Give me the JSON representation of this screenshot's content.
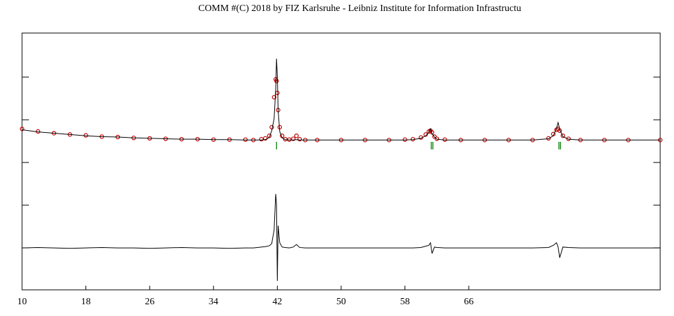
{
  "chart_data": {
    "type": "line",
    "title": "COMM #(C) 2018 by FIZ Karlsruhe - Leibniz Institute for Information Infrastructu",
    "x": [
      10,
      12,
      14,
      16,
      18,
      20,
      22,
      24,
      26,
      28,
      30,
      32,
      34,
      36,
      38,
      39,
      40,
      40.5,
      41,
      41.3,
      41.6,
      41.8,
      41.9,
      42,
      42.1,
      42.3,
      42.6,
      43,
      43.5,
      44,
      44.4,
      44.8,
      45.5,
      47,
      50,
      53,
      56,
      58,
      59,
      60,
      60.6,
      61,
      61.2,
      61.4,
      61.7,
      62,
      63,
      65,
      68,
      71,
      74,
      76,
      76.6,
      77,
      77.2,
      77.4,
      77.8,
      78.5,
      80,
      83,
      86,
      90
    ],
    "series": [
      {
        "color": "#c00000",
        "marker": "circle",
        "values": [
          376,
          370,
          366,
          363,
          361,
          358,
          357,
          355,
          354,
          353,
          352,
          352,
          351,
          351,
          351,
          350,
          352,
          354,
          360,
          380,
          450,
          492,
          488,
          460,
          420,
          380,
          360,
          352,
          351,
          353,
          360,
          352,
          350,
          350,
          350,
          350,
          350,
          351,
          352,
          356,
          363,
          370,
          372,
          368,
          358,
          353,
          351,
          350,
          350,
          350,
          350,
          354,
          364,
          374,
          376,
          372,
          360,
          353,
          350,
          350,
          350,
          350
        ]
      },
      {
        "color": "#000000",
        "values": [
          374,
          369,
          366,
          363,
          360,
          358,
          357,
          355,
          354,
          353,
          352,
          352,
          351,
          351,
          350,
          350,
          350,
          351,
          356,
          372,
          400,
          470,
          540,
          500,
          420,
          370,
          355,
          351,
          350,
          350,
          351,
          350,
          350,
          350,
          350,
          350,
          350,
          350,
          351,
          354,
          360,
          368,
          376,
          365,
          357,
          352,
          350,
          350,
          350,
          350,
          350,
          353,
          360,
          378,
          391,
          375,
          358,
          352,
          350,
          350,
          350,
          350
        ]
      },
      {
        "color": "#000000",
        "values": [
          98,
          99,
          98,
          97,
          98,
          99,
          98,
          98,
          97,
          98,
          99,
          98,
          98,
          97,
          98,
          98,
          100,
          101,
          103,
          108,
          140,
          224,
          200,
          21,
          150,
          110,
          100,
          99,
          98,
          100,
          106,
          99,
          98,
          98,
          98,
          98,
          98,
          98,
          98,
          99,
          102,
          104,
          110,
          85,
          100,
          99,
          98,
          98,
          98,
          98,
          98,
          99,
          104,
          110,
          100,
          75,
          100,
          99,
          98,
          98,
          98,
          98
        ]
      }
    ],
    "reflections": {
      "color": "#008000",
      "x": [
        41.9,
        61.3,
        61.5,
        77.3,
        77.5
      ]
    },
    "xlim": [
      10,
      90
    ],
    "ylim": [
      0,
      600
    ],
    "xticks": [
      10,
      18,
      26,
      34,
      42,
      50,
      58,
      66
    ]
  }
}
